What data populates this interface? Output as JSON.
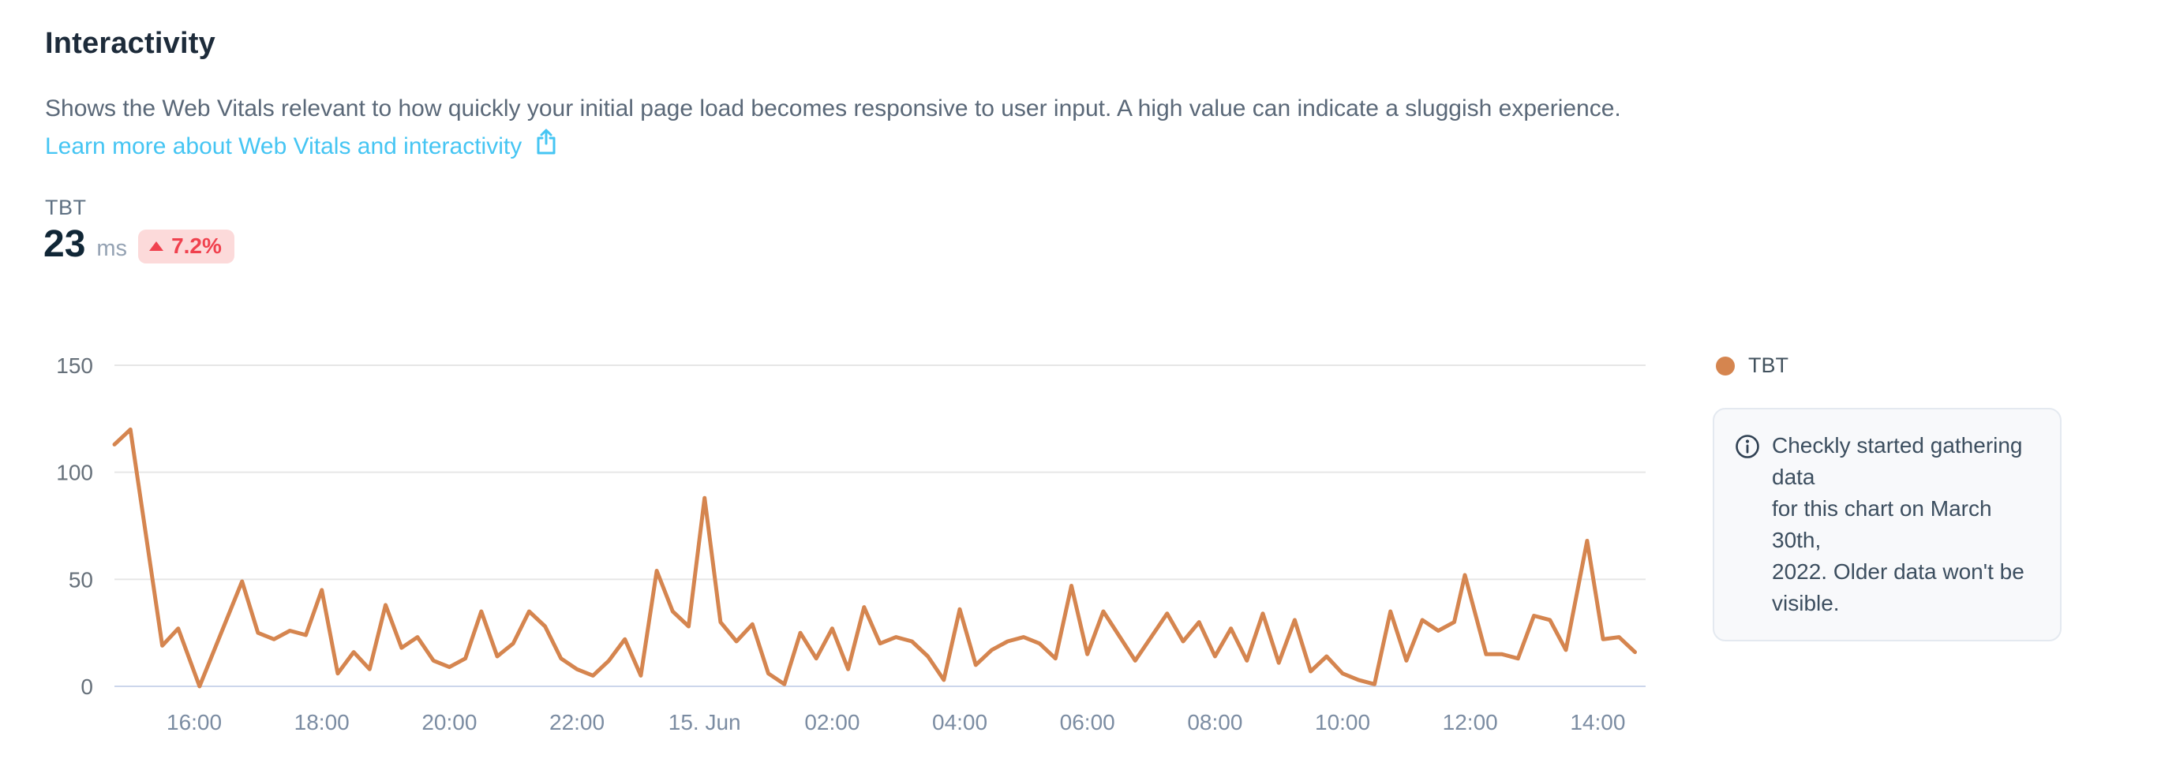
{
  "header": {
    "title": "Interactivity",
    "description": "Shows the Web Vitals relevant to how quickly your initial page load becomes responsive to user input. A high value can indicate a sluggish experience.",
    "link_label": "Learn more about Web Vitals and interactivity"
  },
  "metric": {
    "label": "TBT",
    "value": "23",
    "unit": "ms",
    "delta": "7.2%",
    "delta_direction": "up",
    "delta_color": "#f0414e",
    "delta_bg": "#fcdada"
  },
  "legend": {
    "label": "TBT",
    "color": "#d5854f"
  },
  "info_note": {
    "lines": [
      "Checkly started gathering data",
      "for this chart on March 30th,",
      "2022. Older data won't be",
      "visible."
    ]
  },
  "chart_data": {
    "type": "line",
    "title": "",
    "xlabel": "",
    "ylabel": "",
    "ylim": [
      0,
      150
    ],
    "y_ticks": [
      0,
      50,
      100,
      150
    ],
    "grid": "horizontal",
    "legend_position": "top-right",
    "x_unit": "minutes since chart start (Jun 14 ~14:45 to Jun 15 ~14:45)",
    "x_range_minutes": [
      0,
      1440
    ],
    "x_ticks": [
      {
        "min": 75,
        "label": "16:00"
      },
      {
        "min": 195,
        "label": "18:00"
      },
      {
        "min": 315,
        "label": "20:00"
      },
      {
        "min": 435,
        "label": "22:00"
      },
      {
        "min": 555,
        "label": "15. Jun"
      },
      {
        "min": 675,
        "label": "02:00"
      },
      {
        "min": 795,
        "label": "04:00"
      },
      {
        "min": 915,
        "label": "06:00"
      },
      {
        "min": 1035,
        "label": "08:00"
      },
      {
        "min": 1155,
        "label": "10:00"
      },
      {
        "min": 1275,
        "label": "12:00"
      },
      {
        "min": 1395,
        "label": "14:00"
      }
    ],
    "series": [
      {
        "name": "TBT",
        "color": "#d5854f",
        "points": [
          [
            0,
            113
          ],
          [
            15,
            120
          ],
          [
            45,
            19
          ],
          [
            60,
            27
          ],
          [
            80,
            0
          ],
          [
            120,
            49
          ],
          [
            135,
            25
          ],
          [
            150,
            22
          ],
          [
            165,
            26
          ],
          [
            180,
            24
          ],
          [
            195,
            45
          ],
          [
            210,
            6
          ],
          [
            225,
            16
          ],
          [
            240,
            8
          ],
          [
            255,
            38
          ],
          [
            270,
            18
          ],
          [
            285,
            23
          ],
          [
            300,
            12
          ],
          [
            315,
            9
          ],
          [
            330,
            13
          ],
          [
            345,
            35
          ],
          [
            360,
            14
          ],
          [
            375,
            20
          ],
          [
            390,
            35
          ],
          [
            405,
            28
          ],
          [
            420,
            13
          ],
          [
            435,
            8
          ],
          [
            450,
            5
          ],
          [
            465,
            12
          ],
          [
            480,
            22
          ],
          [
            495,
            5
          ],
          [
            510,
            54
          ],
          [
            525,
            35
          ],
          [
            540,
            28
          ],
          [
            555,
            88
          ],
          [
            570,
            30
          ],
          [
            585,
            21
          ],
          [
            600,
            29
          ],
          [
            615,
            6
          ],
          [
            630,
            1
          ],
          [
            645,
            25
          ],
          [
            660,
            13
          ],
          [
            675,
            27
          ],
          [
            690,
            8
          ],
          [
            705,
            37
          ],
          [
            720,
            20
          ],
          [
            735,
            23
          ],
          [
            750,
            21
          ],
          [
            765,
            14
          ],
          [
            780,
            3
          ],
          [
            795,
            36
          ],
          [
            810,
            10
          ],
          [
            825,
            17
          ],
          [
            840,
            21
          ],
          [
            855,
            23
          ],
          [
            870,
            20
          ],
          [
            885,
            13
          ],
          [
            900,
            47
          ],
          [
            915,
            15
          ],
          [
            930,
            35
          ],
          [
            960,
            12
          ],
          [
            990,
            34
          ],
          [
            1005,
            21
          ],
          [
            1020,
            30
          ],
          [
            1035,
            14
          ],
          [
            1050,
            27
          ],
          [
            1065,
            12
          ],
          [
            1080,
            34
          ],
          [
            1095,
            11
          ],
          [
            1110,
            31
          ],
          [
            1125,
            7
          ],
          [
            1140,
            14
          ],
          [
            1155,
            6
          ],
          [
            1170,
            3
          ],
          [
            1185,
            1
          ],
          [
            1200,
            35
          ],
          [
            1215,
            12
          ],
          [
            1230,
            31
          ],
          [
            1245,
            26
          ],
          [
            1260,
            30
          ],
          [
            1270,
            52
          ],
          [
            1290,
            15
          ],
          [
            1305,
            15
          ],
          [
            1320,
            13
          ],
          [
            1335,
            33
          ],
          [
            1350,
            31
          ],
          [
            1365,
            17
          ],
          [
            1385,
            68
          ],
          [
            1400,
            22
          ],
          [
            1415,
            23
          ],
          [
            1430,
            16
          ]
        ]
      }
    ]
  }
}
